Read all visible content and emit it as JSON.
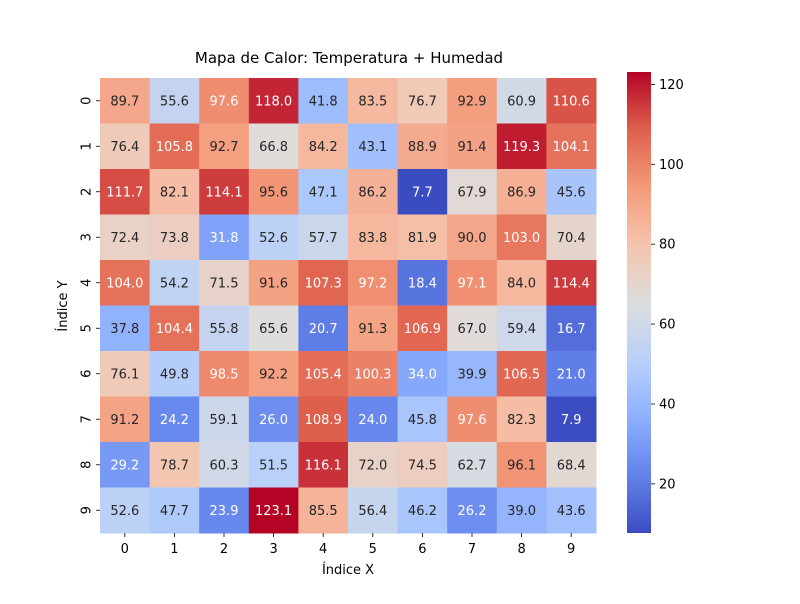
{
  "chart_data": {
    "type": "heatmap",
    "title": "Mapa de Calor: Temperatura + Humedad",
    "xlabel": "Índice X",
    "ylabel": "Índice Y",
    "x_categories": [
      "0",
      "1",
      "2",
      "3",
      "4",
      "5",
      "6",
      "7",
      "8",
      "9"
    ],
    "y_categories": [
      "0",
      "1",
      "2",
      "3",
      "4",
      "5",
      "6",
      "7",
      "8",
      "9"
    ],
    "values": [
      [
        89.7,
        55.6,
        97.6,
        118.0,
        41.8,
        83.5,
        76.7,
        92.9,
        60.9,
        110.6
      ],
      [
        76.4,
        105.8,
        92.7,
        66.8,
        84.2,
        43.1,
        88.9,
        91.4,
        119.3,
        104.1
      ],
      [
        111.7,
        82.1,
        114.1,
        95.6,
        47.1,
        86.2,
        7.7,
        67.9,
        86.9,
        45.6
      ],
      [
        72.4,
        73.8,
        31.8,
        52.6,
        57.7,
        83.8,
        81.9,
        90.0,
        103.0,
        70.4
      ],
      [
        104.0,
        54.2,
        71.5,
        91.6,
        107.3,
        97.2,
        18.4,
        97.1,
        84.0,
        114.4
      ],
      [
        37.8,
        104.4,
        55.8,
        65.6,
        20.7,
        91.3,
        106.9,
        67.0,
        59.4,
        16.7
      ],
      [
        76.1,
        49.8,
        98.5,
        92.2,
        105.4,
        100.3,
        34.0,
        39.9,
        106.5,
        21.0
      ],
      [
        91.2,
        24.2,
        59.1,
        26.0,
        108.9,
        24.0,
        45.8,
        97.6,
        82.3,
        7.9
      ],
      [
        29.2,
        78.7,
        60.3,
        51.5,
        116.1,
        72.0,
        74.5,
        62.7,
        96.1,
        68.4
      ],
      [
        52.6,
        47.7,
        23.9,
        123.1,
        85.5,
        56.4,
        46.2,
        26.2,
        39.0,
        43.6
      ]
    ],
    "vmin": 7.7,
    "vmax": 123.1,
    "colormap": "coolwarm",
    "colorbar_ticks": [
      20,
      40,
      60,
      80,
      100,
      120
    ],
    "annotate": true,
    "value_format": "0.1f",
    "grid": false
  }
}
